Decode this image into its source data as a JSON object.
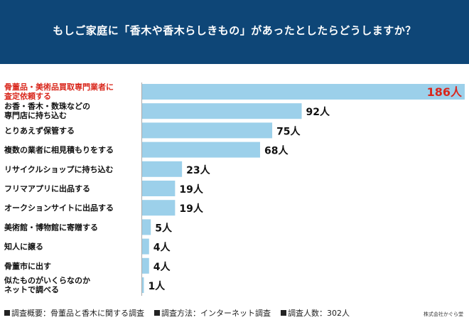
{
  "header": {
    "title": "もしご家庭に「香木や香木らしきもの」があったとしたらどうしますか？"
  },
  "chart_data": {
    "type": "bar",
    "orientation": "horizontal",
    "title": "もしご家庭に「香木や香木らしきもの」があったとしたらどうしますか？",
    "categories": [
      [
        "骨董品・美術品買取専門業者に",
        "査定依頼する"
      ],
      [
        "お香・香木・数珠などの",
        "専門店に持ち込む"
      ],
      [
        "とりあえず保管する"
      ],
      [
        "複数の業者に相見積もりをする"
      ],
      [
        "リサイクルショップに持ち込む"
      ],
      [
        "フリマアプリに出品する"
      ],
      [
        "オークションサイトに出品する"
      ],
      [
        "美術館・博物館に寄贈する"
      ],
      [
        "知人に譲る"
      ],
      [
        "骨董市に出す"
      ],
      [
        "似たものがいくらなのか",
        "ネットで調べる"
      ]
    ],
    "values": [
      186,
      92,
      75,
      68,
      23,
      19,
      19,
      5,
      4,
      4,
      1
    ],
    "value_labels": [
      "186人",
      "92人",
      "75人",
      "68人",
      "23人",
      "19人",
      "19人",
      "5人",
      "4人",
      "4人",
      "1人"
    ],
    "highlight_index": 0,
    "xlim": [
      0,
      186
    ],
    "colors": {
      "bar": "#9cd0ea",
      "highlight_text": "#d9271c",
      "text": "#111111"
    }
  },
  "footer": {
    "items": [
      "調査概要：骨董品と香木に関する調査",
      "調査方法：インターネット調査",
      "調査人数：302人"
    ],
    "brand": "株式会社かぐら堂"
  }
}
